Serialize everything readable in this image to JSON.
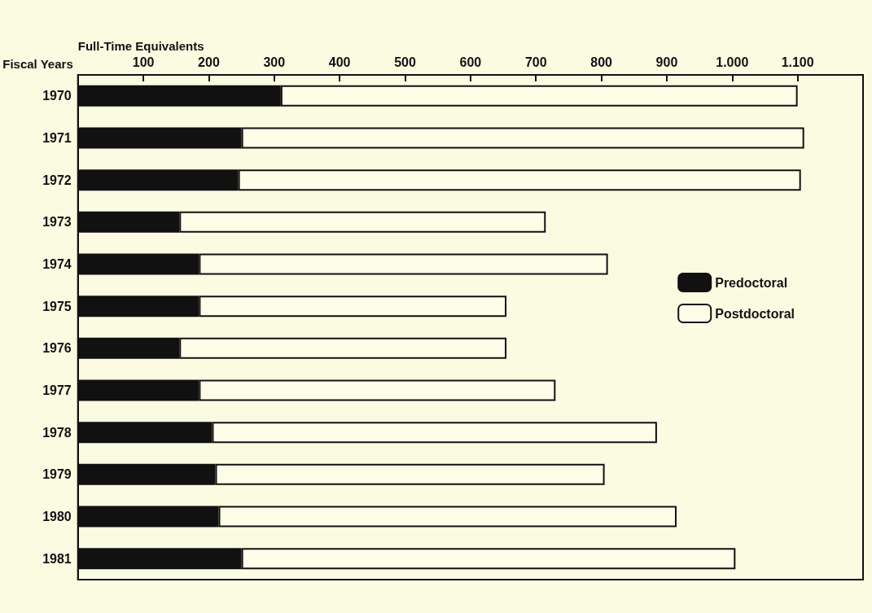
{
  "chart_data": {
    "type": "bar",
    "orientation": "horizontal",
    "stacked": true,
    "xlabel": "Full-Time Equivalents",
    "ylabel": "Fiscal Years",
    "categories": [
      "1970",
      "1971",
      "1972",
      "1973",
      "1974",
      "1975",
      "1976",
      "1977",
      "1978",
      "1979",
      "1980",
      "1981"
    ],
    "series": [
      {
        "name": "Predoctoral",
        "color": "#111111",
        "values": [
          310,
          250,
          245,
          155,
          185,
          185,
          155,
          185,
          205,
          210,
          215,
          250
        ]
      },
      {
        "name": "Postdoctoral",
        "color": "#fdfde8",
        "values": [
          790,
          860,
          860,
          560,
          625,
          470,
          500,
          545,
          680,
          595,
          700,
          755
        ]
      }
    ],
    "xlim": [
      0,
      1200
    ],
    "xticks": [
      100,
      200,
      300,
      400,
      500,
      600,
      700,
      800,
      900,
      {
        "value": 1000,
        "label": "1.000"
      },
      {
        "value": 1100,
        "label": "1.100"
      }
    ],
    "legend": "right",
    "grid": false
  }
}
